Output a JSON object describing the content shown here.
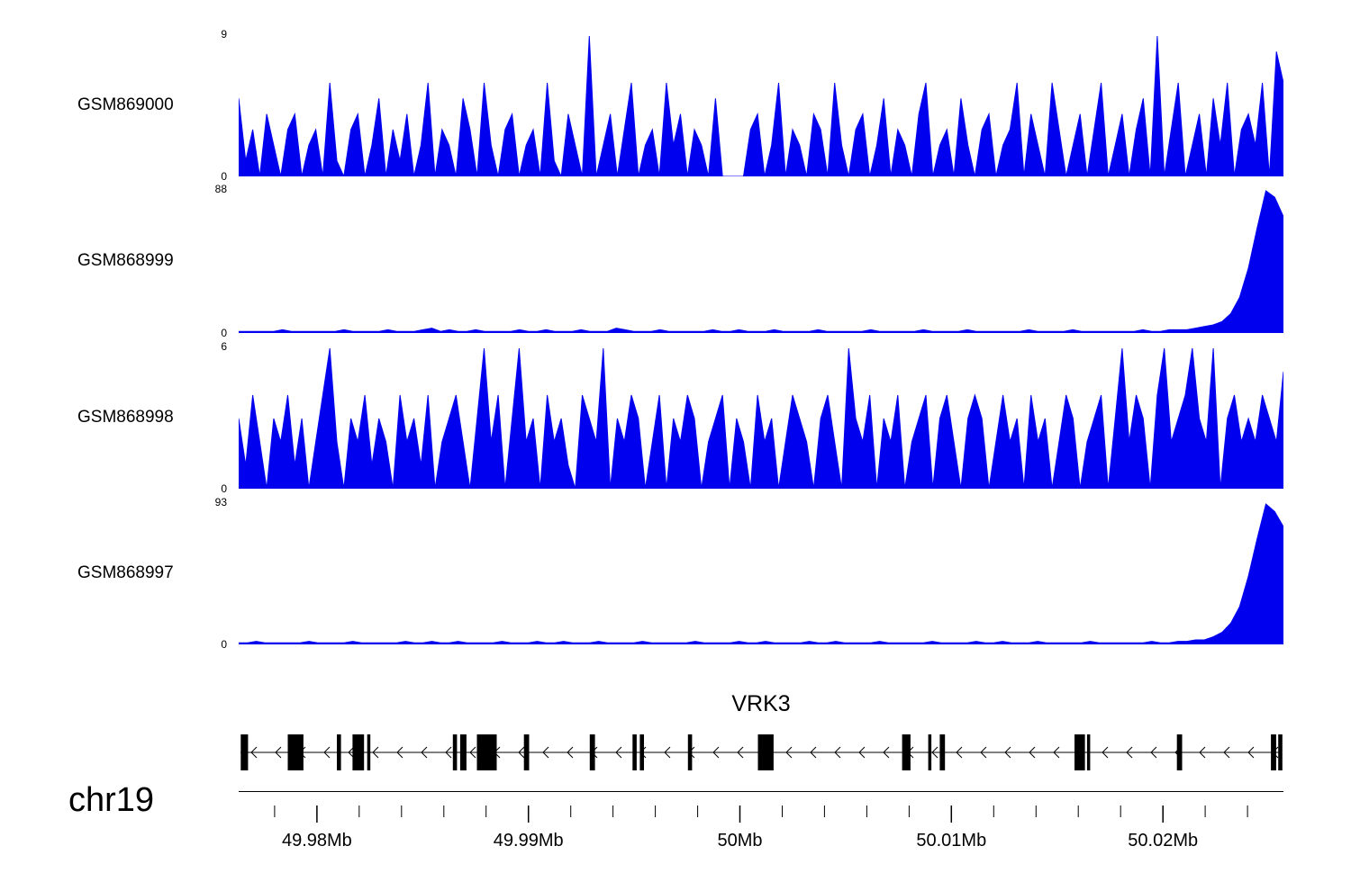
{
  "figure": {
    "background": "#ffffff",
    "signal_color": "#0000EE",
    "axis_color": "#000000"
  },
  "chart_data": {
    "type": "area",
    "description": "Genome browser coverage tracks (4 samples) over the VRK3 locus on chr19",
    "tracks": [
      {
        "name": "GSM869000",
        "ylim": [
          0,
          9
        ],
        "values": [
          5,
          1,
          3,
          0,
          4,
          2,
          0,
          3,
          4,
          0,
          2,
          3,
          0,
          6,
          1,
          0,
          3,
          4,
          0,
          2,
          5,
          0,
          3,
          1,
          4,
          0,
          2,
          6,
          0,
          3,
          2,
          0,
          5,
          3,
          0,
          6,
          2,
          0,
          3,
          4,
          0,
          2,
          3,
          0,
          6,
          1,
          0,
          4,
          2,
          0,
          9,
          0,
          2,
          4,
          0,
          3,
          6,
          0,
          2,
          3,
          0,
          6,
          2,
          4,
          0,
          3,
          2,
          0,
          5,
          0,
          0,
          0,
          0,
          3,
          4,
          0,
          2,
          6,
          0,
          3,
          2,
          0,
          4,
          3,
          0,
          6,
          2,
          0,
          3,
          4,
          0,
          2,
          5,
          0,
          3,
          2,
          0,
          4,
          6,
          0,
          2,
          3,
          0,
          5,
          2,
          0,
          3,
          4,
          0,
          2,
          3,
          6,
          0,
          4,
          2,
          0,
          6,
          3,
          0,
          2,
          4,
          0,
          3,
          6,
          0,
          2,
          4,
          0,
          3,
          5,
          0,
          9,
          0,
          3,
          6,
          0,
          2,
          4,
          0,
          5,
          2,
          6,
          0,
          3,
          4,
          2,
          6,
          0,
          8,
          6
        ]
      },
      {
        "name": "GSM868999",
        "ylim": [
          0,
          88
        ],
        "values": [
          1,
          1,
          1,
          1,
          1,
          2,
          1,
          1,
          1,
          1,
          1,
          1,
          2,
          1,
          1,
          1,
          1,
          2,
          1,
          1,
          1,
          2,
          3,
          1,
          2,
          1,
          1,
          2,
          1,
          1,
          1,
          1,
          2,
          1,
          1,
          2,
          1,
          1,
          1,
          2,
          1,
          1,
          1,
          3,
          2,
          1,
          1,
          1,
          2,
          1,
          1,
          1,
          1,
          1,
          2,
          1,
          1,
          2,
          1,
          1,
          1,
          2,
          1,
          1,
          1,
          1,
          2,
          1,
          1,
          1,
          1,
          1,
          2,
          1,
          1,
          1,
          1,
          1,
          2,
          1,
          1,
          1,
          1,
          2,
          1,
          1,
          1,
          1,
          1,
          1,
          2,
          1,
          1,
          1,
          1,
          2,
          1,
          1,
          1,
          1,
          1,
          1,
          1,
          2,
          1,
          1,
          2,
          2,
          2,
          3,
          4,
          5,
          7,
          12,
          22,
          40,
          65,
          88,
          84,
          72
        ]
      },
      {
        "name": "GSM868998",
        "ylim": [
          0,
          6
        ],
        "values": [
          3,
          1,
          4,
          2,
          0,
          3,
          2,
          4,
          1,
          3,
          0,
          2,
          4,
          6,
          2,
          0,
          3,
          2,
          4,
          1,
          3,
          2,
          0,
          4,
          2,
          3,
          1,
          4,
          0,
          2,
          3,
          4,
          2,
          0,
          3,
          6,
          2,
          4,
          0,
          3,
          6,
          2,
          3,
          0,
          4,
          2,
          3,
          1,
          0,
          4,
          3,
          2,
          6,
          0,
          3,
          2,
          4,
          3,
          0,
          2,
          4,
          0,
          3,
          2,
          4,
          3,
          0,
          2,
          3,
          4,
          0,
          3,
          2,
          0,
          4,
          2,
          3,
          0,
          2,
          4,
          3,
          2,
          0,
          3,
          4,
          2,
          0,
          6,
          3,
          2,
          4,
          0,
          3,
          2,
          4,
          0,
          2,
          3,
          4,
          0,
          3,
          4,
          2,
          0,
          3,
          4,
          3,
          0,
          2,
          4,
          2,
          3,
          0,
          4,
          2,
          3,
          0,
          2,
          4,
          3,
          0,
          2,
          3,
          4,
          0,
          3,
          6,
          2,
          4,
          3,
          0,
          4,
          6,
          2,
          3,
          4,
          6,
          3,
          2,
          6,
          0,
          3,
          4,
          2,
          3,
          2,
          4,
          3,
          2,
          5
        ]
      },
      {
        "name": "GSM868997",
        "ylim": [
          0,
          93
        ],
        "values": [
          1,
          1,
          2,
          1,
          1,
          1,
          1,
          1,
          2,
          1,
          1,
          1,
          1,
          2,
          1,
          1,
          1,
          1,
          1,
          2,
          1,
          1,
          2,
          1,
          1,
          2,
          1,
          1,
          1,
          1,
          2,
          1,
          1,
          1,
          2,
          1,
          1,
          2,
          1,
          1,
          1,
          2,
          1,
          1,
          1,
          1,
          2,
          1,
          1,
          1,
          1,
          1,
          2,
          1,
          1,
          1,
          1,
          2,
          1,
          1,
          2,
          1,
          1,
          1,
          1,
          2,
          1,
          1,
          2,
          1,
          1,
          1,
          1,
          2,
          1,
          1,
          1,
          1,
          1,
          2,
          1,
          1,
          1,
          1,
          2,
          1,
          1,
          2,
          1,
          1,
          1,
          2,
          1,
          1,
          1,
          1,
          1,
          2,
          1,
          1,
          1,
          1,
          1,
          1,
          2,
          1,
          1,
          2,
          2,
          3,
          3,
          5,
          8,
          14,
          25,
          45,
          70,
          93,
          88,
          78
        ]
      }
    ],
    "gene_track": {
      "title": "VRK3",
      "strand": "-",
      "exons": [
        {
          "x": 0.002,
          "w": 0.007
        },
        {
          "x": 0.047,
          "w": 0.015
        },
        {
          "x": 0.094,
          "w": 0.004
        },
        {
          "x": 0.109,
          "w": 0.011
        },
        {
          "x": 0.123,
          "w": 0.003
        },
        {
          "x": 0.205,
          "w": 0.004
        },
        {
          "x": 0.212,
          "w": 0.006
        },
        {
          "x": 0.228,
          "w": 0.019
        },
        {
          "x": 0.273,
          "w": 0.005
        },
        {
          "x": 0.336,
          "w": 0.005
        },
        {
          "x": 0.377,
          "w": 0.004
        },
        {
          "x": 0.384,
          "w": 0.004
        },
        {
          "x": 0.43,
          "w": 0.004
        },
        {
          "x": 0.497,
          "w": 0.015
        },
        {
          "x": 0.635,
          "w": 0.008
        },
        {
          "x": 0.66,
          "w": 0.003
        },
        {
          "x": 0.671,
          "w": 0.005
        },
        {
          "x": 0.8,
          "w": 0.01
        },
        {
          "x": 0.812,
          "w": 0.003
        },
        {
          "x": 0.898,
          "w": 0.005
        },
        {
          "x": 0.988,
          "w": 0.005
        },
        {
          "x": 0.995,
          "w": 0.004
        }
      ]
    },
    "axis": {
      "chromosome": "chr19",
      "start_mb": 49.9763,
      "end_mb": 50.0257,
      "minor_tick_step_mb": 0.002,
      "major_ticks": [
        {
          "pos_mb": 49.98,
          "label": "49.98Mb"
        },
        {
          "pos_mb": 49.99,
          "label": "49.99Mb"
        },
        {
          "pos_mb": 50.0,
          "label": "50Mb"
        },
        {
          "pos_mb": 50.01,
          "label": "50.01Mb"
        },
        {
          "pos_mb": 50.02,
          "label": "50.02Mb"
        }
      ]
    }
  }
}
